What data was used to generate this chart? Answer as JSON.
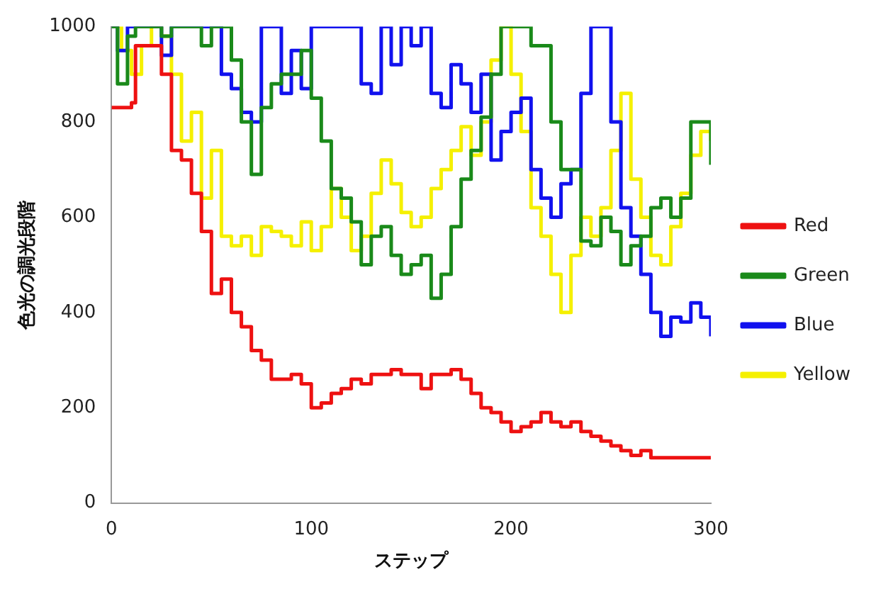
{
  "chart_data": {
    "type": "step",
    "xlabel": "ステップ",
    "ylabel": "色光の調光段階",
    "xlim": [
      0,
      300
    ],
    "xticks": [
      0,
      100,
      200,
      300
    ],
    "ylim": [
      0,
      1000
    ],
    "yticks": [
      0,
      200,
      400,
      600,
      800,
      1000
    ],
    "grid": false,
    "legend": "right",
    "marker": "none",
    "series": [
      {
        "name": "Red",
        "color": "#ee1111",
        "x": [
          0,
          5,
          10,
          12,
          20,
          25,
          30,
          35,
          40,
          45,
          50,
          55,
          60,
          65,
          70,
          75,
          80,
          85,
          90,
          95,
          100,
          105,
          110,
          115,
          120,
          125,
          130,
          135,
          140,
          145,
          150,
          155,
          160,
          165,
          170,
          175,
          180,
          185,
          190,
          195,
          200,
          205,
          210,
          215,
          220,
          225,
          230,
          235,
          240,
          245,
          250,
          255,
          260,
          265,
          270,
          280,
          300
        ],
        "values": [
          830,
          830,
          840,
          960,
          960,
          900,
          740,
          720,
          650,
          570,
          440,
          470,
          400,
          370,
          320,
          300,
          260,
          260,
          270,
          250,
          200,
          210,
          230,
          240,
          260,
          250,
          270,
          270,
          280,
          270,
          270,
          240,
          270,
          270,
          280,
          260,
          230,
          200,
          190,
          170,
          150,
          160,
          170,
          190,
          170,
          160,
          170,
          150,
          140,
          130,
          120,
          110,
          100,
          110,
          95,
          95,
          95
        ]
      },
      {
        "name": "Green",
        "color": "#1a8a1a",
        "x": [
          0,
          3,
          8,
          12,
          20,
          25,
          30,
          40,
          45,
          50,
          60,
          65,
          70,
          75,
          80,
          85,
          95,
          100,
          105,
          110,
          115,
          120,
          125,
          130,
          135,
          140,
          145,
          150,
          155,
          160,
          165,
          170,
          175,
          180,
          185,
          190,
          195,
          205,
          210,
          220,
          225,
          230,
          235,
          240,
          245,
          250,
          255,
          260,
          265,
          270,
          275,
          280,
          285,
          290,
          295,
          300
        ],
        "values": [
          1000,
          880,
          980,
          1000,
          1000,
          980,
          1000,
          1000,
          960,
          1000,
          930,
          800,
          690,
          830,
          880,
          900,
          950,
          850,
          760,
          660,
          640,
          590,
          500,
          560,
          580,
          520,
          480,
          500,
          520,
          430,
          480,
          580,
          680,
          740,
          810,
          900,
          1000,
          1000,
          960,
          800,
          700,
          700,
          550,
          540,
          600,
          570,
          500,
          540,
          560,
          620,
          640,
          600,
          640,
          800,
          800,
          710
        ]
      },
      {
        "name": "Blue",
        "color": "#1111ee",
        "x": [
          0,
          3,
          8,
          20,
          25,
          30,
          50,
          55,
          60,
          65,
          70,
          75,
          80,
          85,
          90,
          95,
          100,
          120,
          125,
          130,
          135,
          140,
          145,
          150,
          155,
          160,
          165,
          170,
          175,
          180,
          185,
          190,
          195,
          200,
          205,
          210,
          215,
          220,
          225,
          230,
          235,
          240,
          245,
          250,
          255,
          260,
          265,
          270,
          275,
          280,
          285,
          290,
          295,
          300
        ],
        "values": [
          1000,
          950,
          1000,
          1000,
          940,
          1000,
          1000,
          900,
          870,
          820,
          800,
          1000,
          1000,
          860,
          950,
          870,
          1000,
          1000,
          880,
          860,
          1000,
          920,
          1000,
          960,
          1000,
          860,
          830,
          920,
          880,
          820,
          900,
          720,
          780,
          820,
          850,
          700,
          640,
          600,
          670,
          700,
          860,
          1000,
          1000,
          800,
          620,
          560,
          480,
          400,
          350,
          390,
          380,
          420,
          390,
          350
        ]
      },
      {
        "name": "Yellow",
        "color": "#f5f000",
        "x": [
          0,
          5,
          10,
          15,
          20,
          25,
          30,
          35,
          40,
          45,
          50,
          55,
          60,
          65,
          70,
          75,
          80,
          85,
          90,
          95,
          100,
          105,
          110,
          115,
          120,
          125,
          130,
          135,
          140,
          145,
          150,
          155,
          160,
          165,
          170,
          175,
          180,
          185,
          190,
          195,
          200,
          205,
          210,
          215,
          220,
          225,
          230,
          235,
          240,
          245,
          250,
          255,
          260,
          265,
          270,
          275,
          280,
          285,
          290,
          295,
          300
        ],
        "values": [
          1000,
          950,
          900,
          960,
          1000,
          980,
          900,
          760,
          820,
          640,
          740,
          560,
          540,
          560,
          520,
          580,
          570,
          560,
          540,
          590,
          530,
          580,
          660,
          600,
          530,
          560,
          650,
          720,
          670,
          610,
          580,
          600,
          660,
          700,
          740,
          790,
          730,
          800,
          930,
          1000,
          900,
          780,
          620,
          560,
          480,
          400,
          520,
          600,
          560,
          620,
          740,
          860,
          680,
          600,
          520,
          500,
          580,
          650,
          730,
          780,
          760
        ]
      }
    ]
  }
}
